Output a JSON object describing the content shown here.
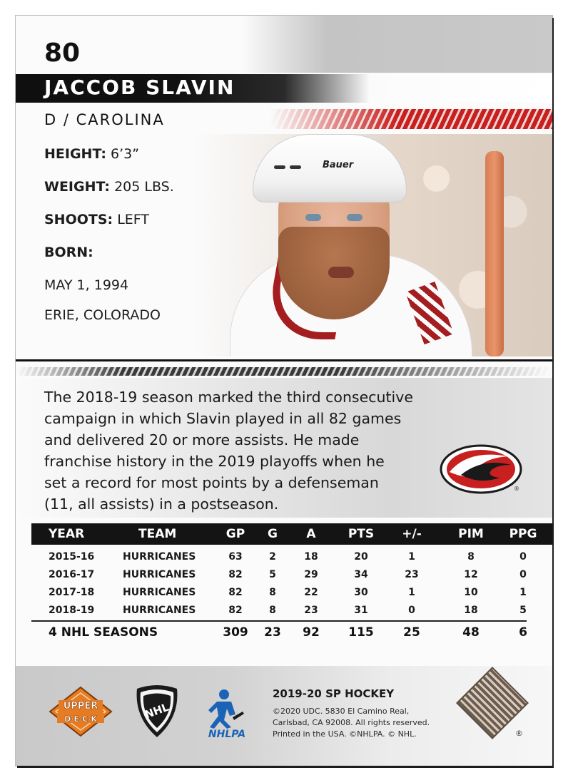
{
  "card": {
    "number": "80",
    "player_name": "JACCOB SLAVIN",
    "position_team": "D / CAROLINA",
    "helmet_brand": "Bauer"
  },
  "bio": {
    "height_label": "HEIGHT:",
    "height_value": "6’3”",
    "weight_label": "WEIGHT:",
    "weight_value": "205 LBS.",
    "shoots_label": "SHOOTS:",
    "shoots_value": "LEFT",
    "born_label": "BORN:",
    "born_date": "MAY 1, 1994",
    "born_place": "ERIE, COLORADO"
  },
  "blurb": [
    "The 2018-19 season marked the third consecutive",
    "campaign in which Slavin played in all 82 games",
    "and delivered 20 or more assists. He made",
    "franchise history in the 2019 playoffs when he",
    "set a record for most points by a defenseman",
    "(11, all assists) in a postseason."
  ],
  "stats": {
    "headers": [
      "YEAR",
      "TEAM",
      "GP",
      "G",
      "A",
      "PTS",
      "+/-",
      "PIM",
      "PPG"
    ],
    "rows": [
      [
        "2015-16",
        "HURRICANES",
        "63",
        "2",
        "18",
        "20",
        "1",
        "8",
        "0"
      ],
      [
        "2016-17",
        "HURRICANES",
        "82",
        "5",
        "29",
        "34",
        "23",
        "12",
        "0"
      ],
      [
        "2017-18",
        "HURRICANES",
        "82",
        "8",
        "22",
        "30",
        "1",
        "10",
        "1"
      ],
      [
        "2018-19",
        "HURRICANES",
        "82",
        "8",
        "23",
        "31",
        "0",
        "18",
        "5"
      ]
    ],
    "totals": [
      "4 NHL SEASONS",
      "309",
      "23",
      "92",
      "115",
      "25",
      "48",
      "6"
    ]
  },
  "footer": {
    "brand_logo_text_1": "UPPER",
    "brand_logo_text_2": "D·E·C·K",
    "nhl_logo_text": "NHL",
    "nhlpa_logo_text": "NHLPA",
    "product": "2019-20 SP HOCKEY",
    "legal": [
      "©2020 UDC. 5830 El Camino Real,",
      "Carlsbad, CA 92008. All rights reserved.",
      "Printed in the USA. ©NHLPA. © NHL."
    ],
    "registered_mark": "®"
  },
  "colors": {
    "accent_red": "#c8201f",
    "bar_black": "#111111",
    "udeck_orange": "#e57b22",
    "nhlpa_blue": "#1b63b6"
  }
}
